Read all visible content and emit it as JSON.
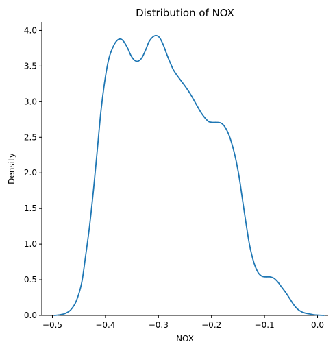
{
  "chart_data": {
    "type": "line",
    "title": "Distribution of NOX",
    "xlabel": "NOX",
    "ylabel": "Density",
    "xlim": [
      -0.52,
      0.02
    ],
    "ylim": [
      0.0,
      4.12
    ],
    "grid": false,
    "line_color": "#1f77b4",
    "x_ticks": [
      {
        "value": -0.5,
        "label": "−0.5"
      },
      {
        "value": -0.4,
        "label": "−0.4"
      },
      {
        "value": -0.3,
        "label": "−0.3"
      },
      {
        "value": -0.2,
        "label": "−0.2"
      },
      {
        "value": -0.1,
        "label": "−0.1"
      },
      {
        "value": 0.0,
        "label": "0.0"
      }
    ],
    "y_ticks": [
      {
        "value": 0.0,
        "label": "0.0"
      },
      {
        "value": 0.5,
        "label": "0.5"
      },
      {
        "value": 1.0,
        "label": "1.0"
      },
      {
        "value": 1.5,
        "label": "1.5"
      },
      {
        "value": 2.0,
        "label": "2.0"
      },
      {
        "value": 2.5,
        "label": "2.5"
      },
      {
        "value": 3.0,
        "label": "3.0"
      },
      {
        "value": 3.5,
        "label": "3.5"
      },
      {
        "value": 4.0,
        "label": "4.0"
      }
    ],
    "series": [
      {
        "x": [
          -0.496,
          -0.485,
          -0.475,
          -0.465,
          -0.455,
          -0.445,
          -0.438,
          -0.43,
          -0.422,
          -0.415,
          -0.408,
          -0.4,
          -0.393,
          -0.385,
          -0.378,
          -0.371,
          -0.365,
          -0.358,
          -0.352,
          -0.345,
          -0.338,
          -0.331,
          -0.324,
          -0.318,
          -0.312,
          -0.305,
          -0.298,
          -0.291,
          -0.284,
          -0.278,
          -0.272,
          -0.265,
          -0.258,
          -0.25,
          -0.24,
          -0.23,
          -0.22,
          -0.212,
          -0.205,
          -0.198,
          -0.19,
          -0.182,
          -0.175,
          -0.168,
          -0.162,
          -0.155,
          -0.148,
          -0.142,
          -0.135,
          -0.128,
          -0.12,
          -0.112,
          -0.105,
          -0.098,
          -0.09,
          -0.082,
          -0.075,
          -0.068,
          -0.06,
          -0.052,
          -0.045,
          -0.038,
          -0.03,
          -0.022,
          -0.015,
          -0.008,
          0.0,
          0.012
        ],
        "y": [
          0.0,
          0.01,
          0.03,
          0.08,
          0.2,
          0.45,
          0.8,
          1.25,
          1.8,
          2.35,
          2.9,
          3.35,
          3.62,
          3.78,
          3.86,
          3.88,
          3.84,
          3.75,
          3.65,
          3.58,
          3.57,
          3.62,
          3.73,
          3.84,
          3.9,
          3.93,
          3.9,
          3.8,
          3.66,
          3.55,
          3.45,
          3.37,
          3.3,
          3.22,
          3.11,
          2.98,
          2.85,
          2.77,
          2.72,
          2.71,
          2.71,
          2.7,
          2.65,
          2.55,
          2.42,
          2.22,
          1.95,
          1.65,
          1.3,
          0.98,
          0.74,
          0.6,
          0.55,
          0.54,
          0.54,
          0.52,
          0.47,
          0.4,
          0.32,
          0.23,
          0.15,
          0.09,
          0.05,
          0.03,
          0.02,
          0.01,
          0.005,
          0.0
        ]
      }
    ]
  }
}
